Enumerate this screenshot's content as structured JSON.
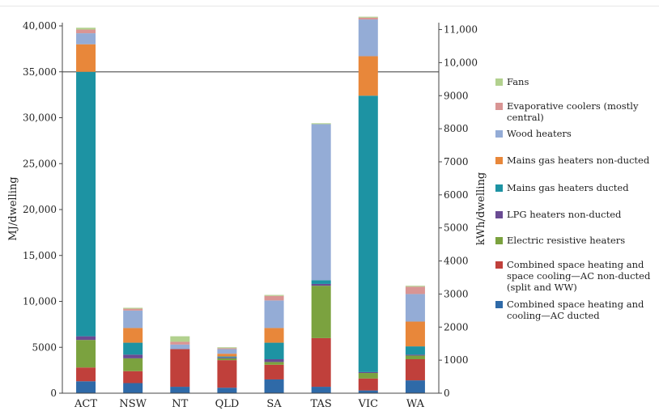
{
  "chart_data": {
    "type": "bar",
    "stacked": true,
    "categories": [
      "ACT",
      "NSW",
      "NT",
      "QLD",
      "SA",
      "TAS",
      "VIC",
      "WA"
    ],
    "ylabel": "MJ/dwelling",
    "y2label": "kWh/dwelling",
    "ylim": [
      0,
      40000
    ],
    "y2lim": [
      0,
      11111
    ],
    "yticks": [
      "0",
      "5000",
      "10,000",
      "15,000",
      "20,000",
      "25,000",
      "30,000",
      "35,000",
      "40,000"
    ],
    "y2ticks": [
      "0",
      "1000",
      "2000",
      "3000",
      "4000",
      "5000",
      "6000",
      "7000",
      "8000",
      "9000",
      "10,000",
      "11,000"
    ],
    "reference_line": 35000,
    "series": [
      {
        "name": "Combined space heating and cooling—AC ducted",
        "color": "#2f6aa8",
        "values": [
          1300,
          1100,
          700,
          600,
          1500,
          700,
          300,
          1400
        ]
      },
      {
        "name": "Combined space heating and space cooling—AC non-ducted (split and WW)",
        "color": "#c0403b",
        "values": [
          1500,
          1300,
          4100,
          3000,
          1600,
          5300,
          1300,
          2300
        ]
      },
      {
        "name": "Electric resistive heaters",
        "color": "#7ba23f",
        "values": [
          3000,
          1400,
          0,
          200,
          300,
          5700,
          600,
          400
        ]
      },
      {
        "name": "LPG heaters non-ducted",
        "color": "#6a4b93",
        "values": [
          400,
          400,
          0,
          100,
          300,
          200,
          100,
          100
        ]
      },
      {
        "name": "Mains gas heaters ducted",
        "color": "#1d93a3",
        "values": [
          28800,
          1300,
          0,
          100,
          1800,
          400,
          30100,
          900
        ]
      },
      {
        "name": "Mains gas heaters non-ducted",
        "color": "#e8873a",
        "values": [
          3000,
          1600,
          0,
          300,
          1600,
          0,
          4300,
          2700
        ]
      },
      {
        "name": "Wood heaters",
        "color": "#94acd6",
        "values": [
          1200,
          1900,
          500,
          500,
          3000,
          17000,
          4000,
          3000
        ]
      },
      {
        "name": "Evaporative coolers (mostly central)",
        "color": "#d99594",
        "values": [
          400,
          200,
          300,
          100,
          500,
          0,
          200,
          800
        ]
      },
      {
        "name": "Fans",
        "color": "#b2d18e",
        "values": [
          200,
          100,
          600,
          100,
          100,
          100,
          100,
          100
        ]
      }
    ]
  },
  "legend": {
    "items": [
      {
        "label": "Fans",
        "color": "#b2d18e"
      },
      {
        "label": "Evaporative coolers (mostly central)",
        "color": "#d99594"
      },
      {
        "label": "Wood heaters",
        "color": "#94acd6"
      },
      {
        "label": "Mains gas heaters non-ducted",
        "color": "#e8873a"
      },
      {
        "label": "Mains gas heaters ducted",
        "color": "#1d93a3"
      },
      {
        "label": "LPG heaters non-ducted",
        "color": "#6a4b93"
      },
      {
        "label": "Electric resistive heaters",
        "color": "#7ba23f"
      },
      {
        "label": "Combined space heating and space cooling—AC non-ducted (split and WW)",
        "color": "#c0403b"
      },
      {
        "label": "Combined space heating and cooling—AC ducted",
        "color": "#2f6aa8"
      }
    ]
  }
}
